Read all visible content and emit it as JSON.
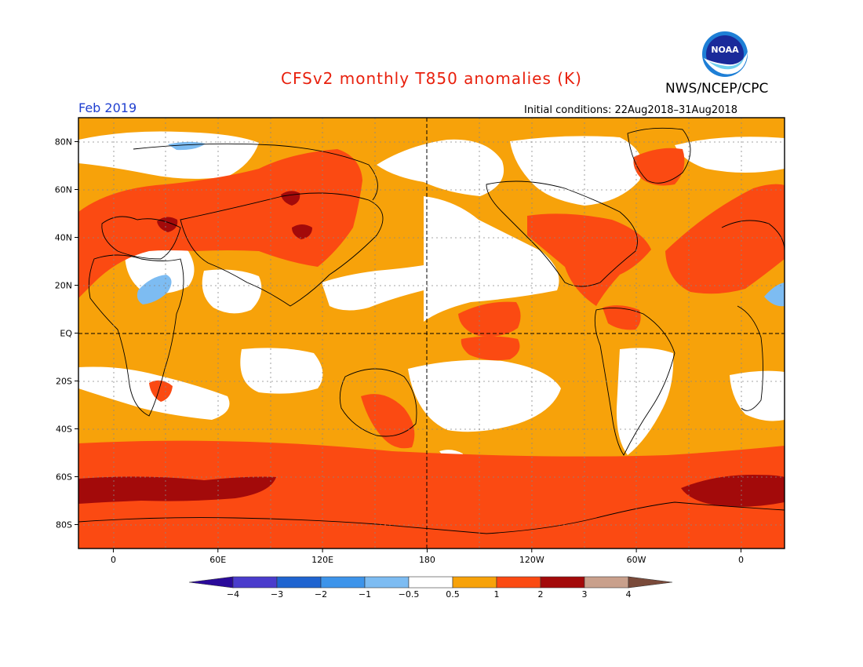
{
  "title": "CFSv2 monthly T850 anomalies (K)",
  "agency": "NWS/NCEP/CPC",
  "logo_text": "NOAA",
  "valid_month": "Feb 2019",
  "initial_conditions": "Initial conditions: 22Aug2018–31Aug2018",
  "lat_labels": [
    "80N",
    "60N",
    "40N",
    "20N",
    "EQ",
    "20S",
    "40S",
    "60S",
    "80S"
  ],
  "lat_values": [
    80,
    60,
    40,
    20,
    0,
    -20,
    -40,
    -60,
    -80
  ],
  "lon_labels": [
    "0",
    "60E",
    "120E",
    "180",
    "120W",
    "60W",
    "0"
  ],
  "lon_values": [
    0,
    60,
    120,
    180,
    240,
    300,
    360
  ],
  "map_extent": {
    "lon_min": -20,
    "lon_max": 385,
    "lat_min": -90,
    "lat_max": 90
  },
  "colorbar": {
    "labels": [
      "−4",
      "−3",
      "−2",
      "−1",
      "−0.5",
      "0.5",
      "1",
      "2",
      "3",
      "4"
    ],
    "colors": [
      "#2a0a9a",
      "#4a3ccc",
      "#1f64d0",
      "#3d94ea",
      "#7dbcf2",
      "#ffffff",
      "#f7a20a",
      "#fb4a12",
      "#a30a0a",
      "#c9a08c",
      "#7a4a3a"
    ]
  },
  "colors": {
    "warm1": "#f7a20a",
    "warm2": "#fb4a12",
    "warm3": "#a30a0a",
    "cool1": "#7dbcf2",
    "neutral": "#ffffff",
    "title": "#e8200d",
    "month": "#1f3fd0"
  }
}
